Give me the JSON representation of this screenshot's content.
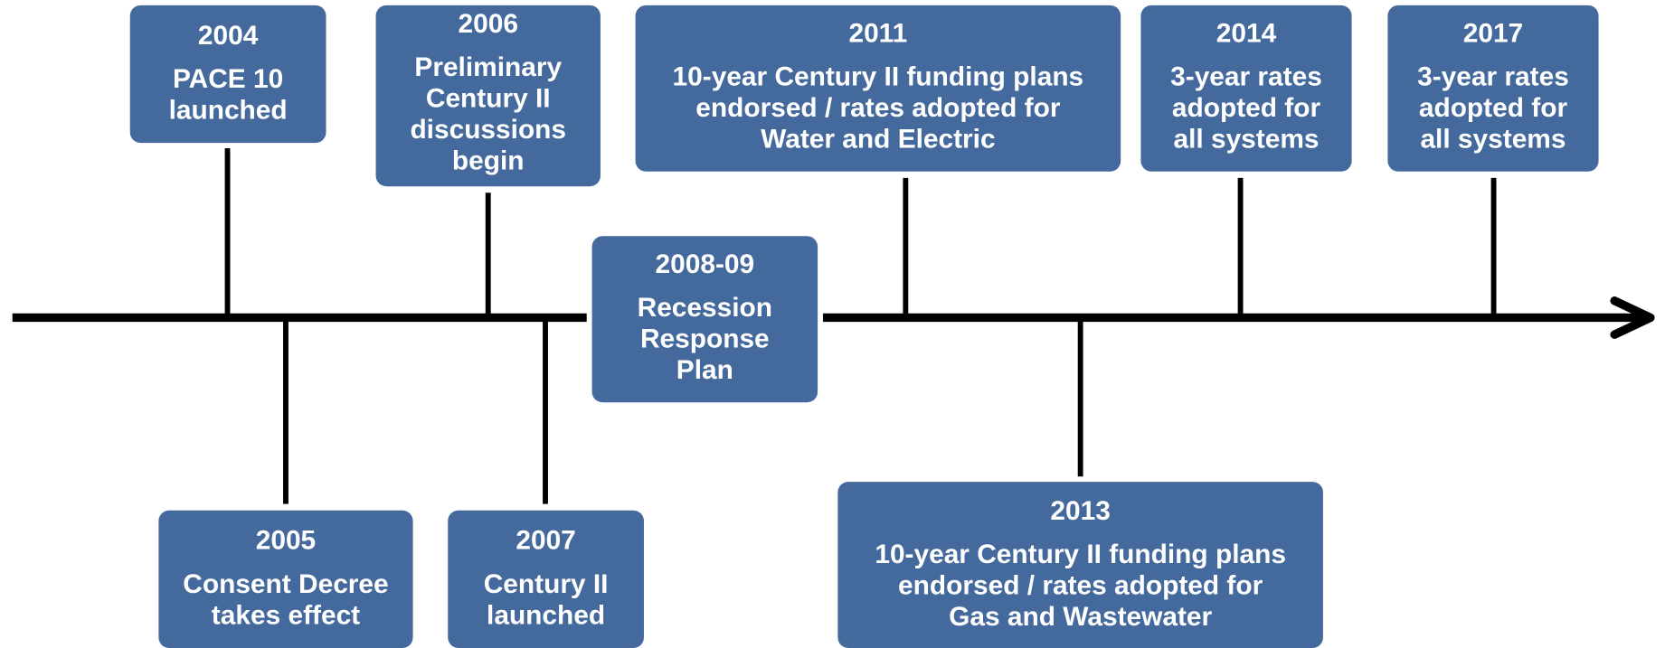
{
  "events": [
    {
      "year": "2004",
      "lines": [
        "PACE 10",
        "launched"
      ]
    },
    {
      "year": "2005",
      "lines": [
        "Consent Decree",
        "takes effect"
      ]
    },
    {
      "year": "2006",
      "lines": [
        "Preliminary",
        "Century II",
        "discussions",
        "begin"
      ]
    },
    {
      "year": "2007",
      "lines": [
        "Century II",
        "launched"
      ]
    },
    {
      "year": "2008-09",
      "lines": [
        "Recession",
        "Response",
        "Plan"
      ]
    },
    {
      "year": "2011",
      "lines": [
        "10-year Century II funding plans",
        "endorsed / rates adopted for",
        "Water and Electric"
      ]
    },
    {
      "year": "2013",
      "lines": [
        "10-year Century II funding plans",
        "endorsed / rates adopted for",
        "Gas and Wastewater"
      ]
    },
    {
      "year": "2014",
      "lines": [
        "3-year rates",
        "adopted for",
        "all systems"
      ]
    },
    {
      "year": "2017",
      "lines": [
        "3-year rates",
        "adopted for",
        "all systems"
      ]
    }
  ]
}
